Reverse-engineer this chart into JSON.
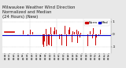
{
  "title_line1": "Milwaukee Weather Wind Direction",
  "title_line2": "Normalized and Median",
  "title_line3": "(24 Hours) (New)",
  "title_fontsize": 3.8,
  "bg_color": "#e8e8e8",
  "plot_bg_color": "#ffffff",
  "median_y": -0.1,
  "median_color": "#0000cc",
  "median_lw": 0.8,
  "bar_color": "#cc0000",
  "ylim": [
    -1.5,
    1.2
  ],
  "xlim": [
    0,
    96
  ],
  "ytick_vals": [
    -1.0,
    0.0,
    1.0
  ],
  "ytick_labels": [
    "-1",
    "0",
    "1"
  ],
  "ytick_fontsize": 3.2,
  "xtick_fontsize": 2.0,
  "grid_color": "#999999",
  "grid_lw": 0.3,
  "legend_norm_color": "#cc0000",
  "legend_med_color": "#0000cc",
  "legend_label_norm": "Norm",
  "legend_label_med": "Med",
  "legend_fontsize": 3.0,
  "n_points": 96,
  "seed": 17
}
